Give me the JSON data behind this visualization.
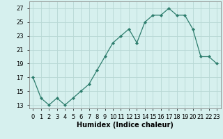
{
  "x": [
    0,
    1,
    2,
    3,
    4,
    5,
    6,
    7,
    8,
    9,
    10,
    11,
    12,
    13,
    14,
    15,
    16,
    17,
    18,
    19,
    20,
    21,
    22,
    23
  ],
  "y": [
    17,
    14,
    13,
    14,
    13,
    14,
    15,
    16,
    18,
    20,
    22,
    23,
    24,
    22,
    25,
    26,
    26,
    27,
    26,
    26,
    24,
    20,
    20,
    19
  ],
  "line_color": "#2d7d6d",
  "marker_color": "#2d7d6d",
  "bg_color": "#d6f0ee",
  "grid_color": "#b8d8d4",
  "xlabel": "Humidex (Indice chaleur)",
  "ylabel_ticks": [
    13,
    15,
    17,
    19,
    21,
    23,
    25,
    27
  ],
  "xlim": [
    -0.5,
    23.5
  ],
  "ylim": [
    12.5,
    28.0
  ],
  "xtick_labels": [
    "0",
    "1",
    "2",
    "3",
    "4",
    "5",
    "6",
    "7",
    "8",
    "9",
    "10",
    "11",
    "12",
    "13",
    "14",
    "15",
    "16",
    "17",
    "18",
    "19",
    "20",
    "21",
    "22",
    "23"
  ],
  "label_fontsize": 7,
  "tick_fontsize": 6
}
